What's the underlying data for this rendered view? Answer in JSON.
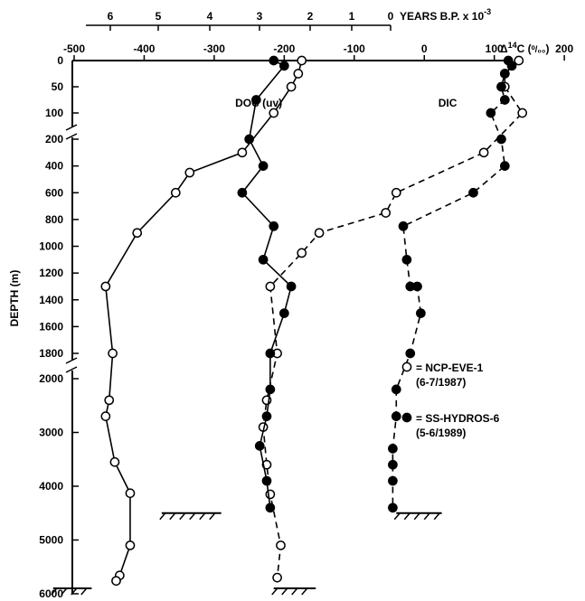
{
  "chart_data": {
    "type": "scatter",
    "title": "",
    "top_axis": {
      "label": "YEARS B.P. x 10",
      "label_exp": "-3",
      "ticks": [
        {
          "value": 6,
          "text": "6"
        },
        {
          "value": 5,
          "text": "5"
        },
        {
          "value": 4,
          "text": "4"
        },
        {
          "value": 3,
          "text": "3"
        },
        {
          "value": 2,
          "text": "2"
        },
        {
          "value": 1,
          "text": "1"
        },
        {
          "value": 0,
          "text": "0"
        }
      ]
    },
    "x_axis": {
      "label_prefix": "Δ",
      "label_sup": "14",
      "label_main": "C (",
      "label_unit": "⁰/₀₀",
      "label_close": ")",
      "range": [
        -530,
        200
      ],
      "ticks": [
        -500,
        -400,
        -300,
        -200,
        -100,
        0,
        100,
        200
      ],
      "tick_labels": [
        "-500",
        "-400",
        "-300",
        "-200",
        "-100",
        "0",
        "100",
        "200"
      ]
    },
    "y_axis": {
      "label": "DEPTH (m)",
      "segments": [
        {
          "from": 0,
          "to": 100,
          "ticks": [
            0,
            50,
            100
          ]
        },
        {
          "from": 200,
          "to": 1800,
          "ticks": [
            200,
            400,
            600,
            800,
            1000,
            1200,
            1400,
            1600,
            1800
          ]
        },
        {
          "from": 2000,
          "to": 6000,
          "ticks": [
            2000,
            3000,
            4000,
            5000,
            6000
          ]
        }
      ],
      "tick_labels": [
        "0",
        "50",
        "100",
        "200",
        "400",
        "600",
        "800",
        "1000",
        "1200",
        "1400",
        "1600",
        "1800",
        "2000",
        "3000",
        "4000",
        "5000",
        "6000"
      ]
    },
    "annotations": [
      {
        "text": "DOC (uv)",
        "x": -270,
        "y": 180
      },
      {
        "text": "DIC",
        "x": 20,
        "y": 180
      }
    ],
    "legend": {
      "placement": "right",
      "entries": [
        {
          "marker": "open",
          "line1": "= NCP-EVE-1",
          "line2": "(6-7/1987)"
        },
        {
          "marker": "filled",
          "line1": "= SS-HYDROS-6",
          "line2": "(5-6/1989)"
        }
      ]
    },
    "series": [
      {
        "name": "NCP-EVE-1 DOC",
        "marker": "open",
        "line": "solid",
        "points": [
          [
            -175,
            0
          ],
          [
            -180,
            25
          ],
          [
            -190,
            50
          ],
          [
            -215,
            100
          ],
          [
            -260,
            300
          ],
          [
            -335,
            450
          ],
          [
            -355,
            600
          ],
          [
            -410,
            900
          ],
          [
            -455,
            1300
          ],
          [
            -445,
            1800
          ],
          [
            -450,
            2400
          ],
          [
            -455,
            2700
          ],
          [
            -442,
            3550
          ],
          [
            -420,
            4130
          ],
          [
            -420,
            5100
          ],
          [
            -435,
            5660
          ],
          [
            -440,
            5760
          ]
        ]
      },
      {
        "name": "NCP-EVE-1 DIC",
        "marker": "open",
        "line": "dashed",
        "points": [
          [
            135,
            0
          ],
          [
            115,
            25
          ],
          [
            115,
            50
          ],
          [
            140,
            100
          ],
          [
            85,
            300
          ],
          [
            -40,
            600
          ],
          [
            -55,
            750
          ],
          [
            -150,
            900
          ],
          [
            -175,
            1050
          ],
          [
            -220,
            1300
          ],
          [
            -210,
            1800
          ],
          [
            -225,
            2400
          ],
          [
            -230,
            2900
          ],
          [
            -225,
            3600
          ],
          [
            -220,
            4150
          ],
          [
            -205,
            5100
          ],
          [
            -210,
            5700
          ]
        ]
      },
      {
        "name": "SS-HYDROS-6 DOC",
        "marker": "filled",
        "line": "solid",
        "points": [
          [
            -215,
            0
          ],
          [
            -200,
            10
          ],
          [
            -240,
            75
          ],
          [
            -250,
            200
          ],
          [
            -230,
            400
          ],
          [
            -260,
            600
          ],
          [
            -215,
            850
          ],
          [
            -230,
            1100
          ],
          [
            -190,
            1300
          ],
          [
            -200,
            1500
          ],
          [
            -220,
            1800
          ],
          [
            -220,
            2200
          ],
          [
            -225,
            2700
          ],
          [
            -235,
            3250
          ],
          [
            -225,
            3900
          ],
          [
            -220,
            4400
          ]
        ]
      },
      {
        "name": "SS-HYDROS-6 DIC",
        "marker": "filled",
        "line": "solid2",
        "points": [
          [
            120,
            0
          ],
          [
            125,
            10
          ],
          [
            115,
            25
          ],
          [
            110,
            50
          ],
          [
            115,
            75
          ],
          [
            95,
            100
          ],
          [
            110,
            200
          ],
          [
            115,
            400
          ],
          [
            70,
            600
          ],
          [
            -30,
            850
          ],
          [
            -25,
            1100
          ],
          [
            -20,
            1300
          ],
          [
            -10,
            1300
          ],
          [
            -5,
            1500
          ],
          [
            -20,
            1800
          ],
          [
            -40,
            2200
          ],
          [
            -40,
            2700
          ],
          [
            -45,
            3300
          ],
          [
            -45,
            3600
          ],
          [
            -45,
            3900
          ],
          [
            -45,
            4400
          ]
        ]
      }
    ],
    "bottom_markers": [
      {
        "x_from": -375,
        "x_to": -290,
        "y": 4500
      },
      {
        "x_from": -530,
        "x_to": -475,
        "y": 5900
      },
      {
        "x_from": -215,
        "x_to": -155,
        "y": 5900
      },
      {
        "x_from": -40,
        "x_to": 25,
        "y": 4500
      }
    ]
  }
}
